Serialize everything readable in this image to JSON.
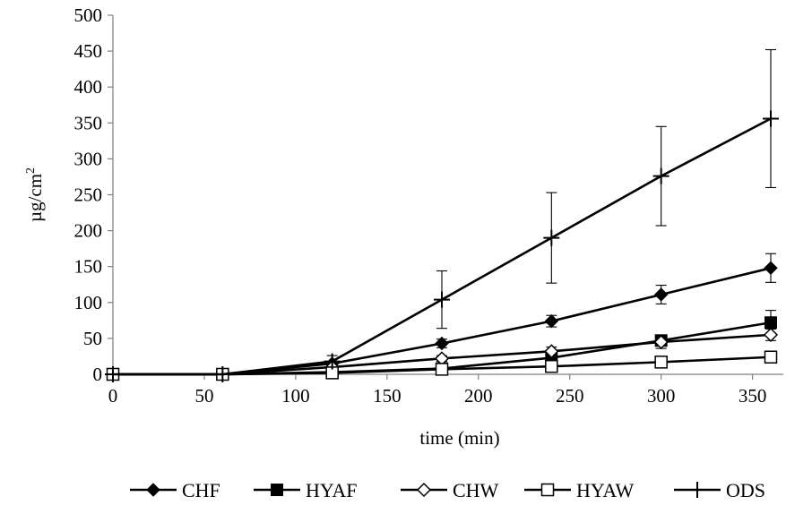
{
  "chart_data": {
    "type": "line",
    "title": "",
    "xlabel": "time (min)",
    "ylabel": "µg/cm",
    "ylabel_superscript": "2",
    "xlim": [
      0,
      360
    ],
    "ylim": [
      0,
      500
    ],
    "x_ticks": [
      "0",
      "50",
      "100",
      "150",
      "200",
      "250",
      "300",
      "350"
    ],
    "y_ticks": [
      "0",
      "50",
      "100",
      "150",
      "200",
      "250",
      "300",
      "350",
      "400",
      "450",
      "500"
    ],
    "grid": false,
    "legend_position": "bottom",
    "x": [
      0,
      60,
      120,
      180,
      240,
      300,
      360
    ],
    "series": [
      {
        "name": "CHF",
        "marker": "filled-diamond",
        "values": [
          0,
          0,
          15,
          43,
          74,
          111,
          148
        ],
        "errors": [
          0,
          0,
          3,
          6,
          8,
          13,
          20
        ]
      },
      {
        "name": "HYAF",
        "marker": "filled-square",
        "values": [
          0,
          0,
          3,
          8,
          23,
          47,
          72
        ],
        "errors": [
          0,
          0,
          1,
          2,
          4,
          7,
          17
        ]
      },
      {
        "name": "CHW",
        "marker": "open-diamond",
        "values": [
          0,
          0,
          10,
          22,
          32,
          45,
          55
        ],
        "errors": [
          0,
          0,
          2,
          4,
          6,
          9,
          8
        ]
      },
      {
        "name": "HYAW",
        "marker": "open-square",
        "values": [
          0,
          0,
          2,
          7,
          11,
          17,
          24
        ],
        "errors": [
          0,
          0,
          0,
          0,
          0,
          0,
          0
        ]
      },
      {
        "name": "ODS",
        "marker": "plus",
        "values": [
          0,
          0,
          18,
          104,
          190,
          276,
          356
        ],
        "errors": [
          0,
          0,
          8,
          40,
          63,
          69,
          96
        ]
      }
    ],
    "colors": {
      "line": "#000000",
      "axis": "#808080",
      "background": "#ffffff"
    }
  }
}
